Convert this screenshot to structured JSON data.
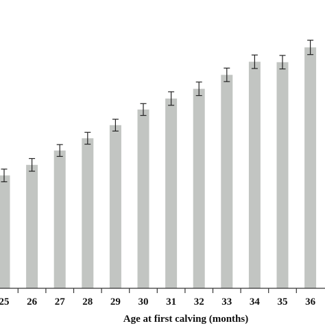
{
  "chart_data": {
    "type": "bar",
    "title": "",
    "xlabel": "Age at first calving (months)",
    "ylabel": "",
    "categories": [
      "25",
      "26",
      "27",
      "28",
      "29",
      "30",
      "31",
      "32",
      "33",
      "34",
      "35",
      "36"
    ],
    "values": [
      26.7,
      29.2,
      32.6,
      35.5,
      38.6,
      42.3,
      44.9,
      47.2,
      50.5,
      53.6,
      53.5,
      57.0
    ],
    "error": [
      1.5,
      1.5,
      1.4,
      1.4,
      1.4,
      1.4,
      1.6,
      1.6,
      1.6,
      1.6,
      1.6,
      1.7
    ],
    "ylim": [
      0,
      64
    ],
    "grid": false,
    "colors": {
      "bar": "#c2c5c2",
      "error_bar": "#222222",
      "axis": "#333333",
      "text": "#111111"
    }
  }
}
